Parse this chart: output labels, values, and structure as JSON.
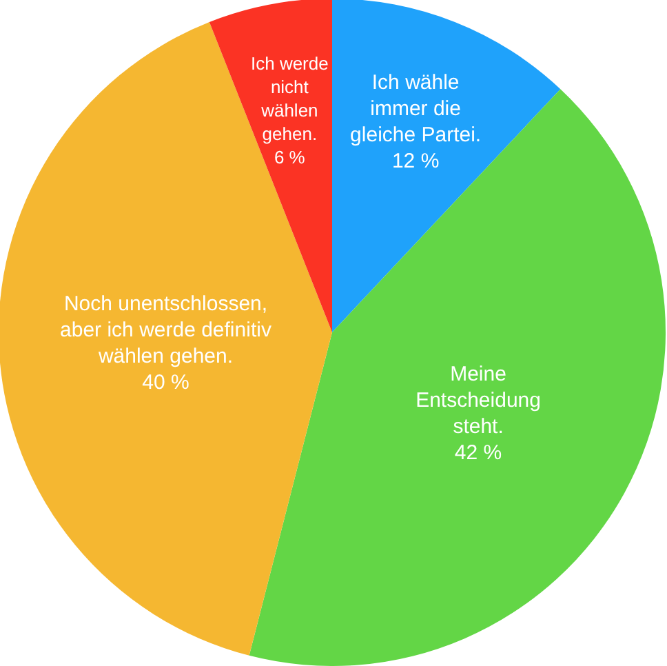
{
  "chart_data": {
    "type": "pie",
    "categories": [
      "Ich wähle immer die gleiche Partei.",
      "Meine Entscheidung steht.",
      "Noch unentschlossen, aber ich werde definitiv wählen gehen.",
      "Ich werde nicht wählen gehen."
    ],
    "values": [
      12,
      42,
      40,
      6
    ],
    "value_labels": [
      "12 %",
      "42 %",
      "40 %",
      "6 %"
    ],
    "colors": [
      "#1fa2fb",
      "#63d646",
      "#f5b731",
      "#fb3324"
    ]
  }
}
